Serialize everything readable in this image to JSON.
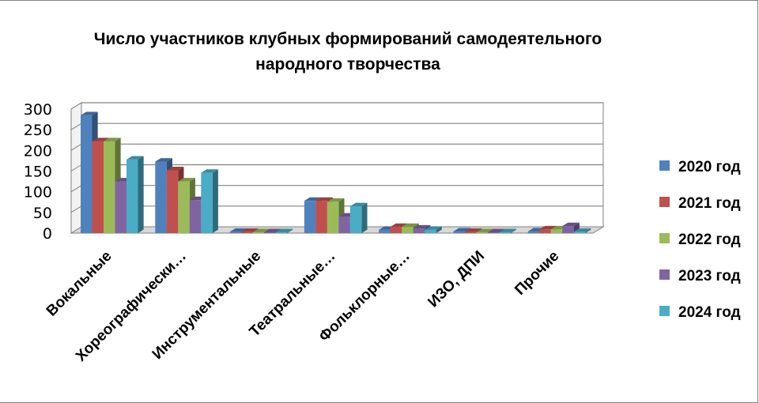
{
  "chart_data": {
    "type": "bar",
    "title": "Число участников клубных формирований самодеятельного\nнародного творчества",
    "xlabel": "",
    "ylabel": "",
    "ylim": [
      0,
      300
    ],
    "yticks": [
      0,
      50,
      100,
      150,
      200,
      250,
      300
    ],
    "grid": true,
    "legend_position": "right",
    "style": "3d-clustered-column",
    "categories": [
      "Вокальные",
      "Хореографически…",
      "Инструментальные",
      "Театральные…",
      "Фольклорные…",
      "ИЗО, ДПИ",
      "Прочие"
    ],
    "series": [
      {
        "name": "2020 год",
        "color": "#4f81bd",
        "values": [
          285,
          173,
          3,
          78,
          8,
          4,
          4
        ]
      },
      {
        "name": "2021 год",
        "color": "#c0504d",
        "values": [
          222,
          152,
          3,
          78,
          15,
          3,
          9
        ]
      },
      {
        "name": "2022 год",
        "color": "#9bbb59",
        "values": [
          222,
          125,
          2,
          76,
          15,
          2,
          9
        ]
      },
      {
        "name": "2023 год",
        "color": "#8064a2",
        "values": [
          125,
          80,
          2,
          40,
          11,
          2,
          17
        ]
      },
      {
        "name": "2024 год",
        "color": "#4bacc6",
        "values": [
          178,
          146,
          2,
          65,
          8,
          2,
          3
        ]
      }
    ]
  }
}
